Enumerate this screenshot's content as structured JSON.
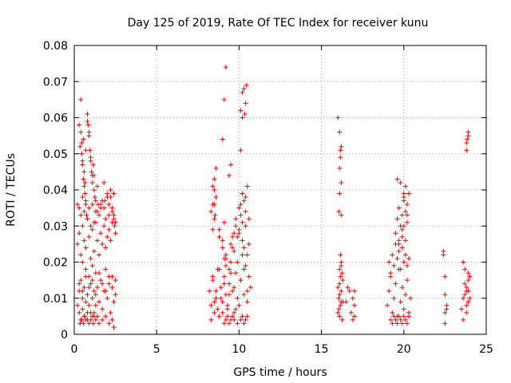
{
  "chart_data": {
    "type": "scatter",
    "title": "Day 125 of 2019, Rate Of TEC Index for receiver kunu",
    "xlabel": "GPS time / hours",
    "ylabel": "ROTI / TECUs",
    "xlim": [
      0,
      25
    ],
    "ylim": [
      0,
      0.08
    ],
    "x_ticks": [
      "0",
      "5",
      "10",
      "15",
      "20",
      "25"
    ],
    "y_ticks": [
      "0",
      "0.01",
      "0.02",
      "0.03",
      "0.04",
      "0.05",
      "0.06",
      "0.07",
      "0.08"
    ],
    "grid": true,
    "marker": "+",
    "color": "#ff0000",
    "series": [
      {
        "x": [
          0.2,
          0.3,
          0.3,
          0.4,
          0.4,
          0.5,
          0.5,
          0.5,
          0.6,
          0.6,
          0.7,
          0.7,
          0.8,
          0.8,
          0.9,
          0.9,
          1.0,
          1.0,
          1.1,
          1.1,
          1.2,
          1.2,
          1.3,
          1.3,
          1.4,
          1.5,
          1.6,
          1.7,
          1.8,
          1.9,
          2.0,
          2.1,
          2.2,
          2.3,
          2.4,
          2.5,
          0.2,
          0.3,
          0.4,
          0.5,
          0.6,
          0.7,
          0.8,
          0.9,
          1.0,
          1.1,
          1.2,
          1.3,
          1.4,
          1.5,
          1.6,
          1.7,
          1.8,
          1.9,
          2.0,
          2.1,
          2.2,
          2.3,
          2.4,
          2.5,
          0.3,
          0.35,
          0.4,
          0.45,
          0.5,
          0.55,
          0.6,
          0.65,
          0.7,
          0.8,
          0.9,
          1.0,
          1.1,
          1.2,
          1.3,
          1.4,
          1.6,
          1.8,
          2.0,
          2.2,
          2.4,
          0.2,
          0.3,
          0.4,
          0.5,
          0.6,
          0.7,
          0.8,
          0.9,
          1.0,
          1.1,
          1.2,
          1.3,
          1.5,
          1.7,
          1.9,
          2.1,
          2.3,
          2.5,
          0.35,
          0.45,
          0.55,
          0.62,
          0.7,
          0.8,
          0.9,
          1.0,
          1.1,
          1.15,
          1.2,
          1.3,
          1.4,
          1.5,
          1.7,
          1.9,
          2.1,
          2.3,
          2.4,
          0.4,
          0.45,
          0.5,
          0.55,
          0.6,
          0.65,
          0.7,
          0.75,
          0.8,
          0.85,
          0.9,
          0.95,
          1.0,
          1.05,
          1.1,
          1.15,
          1.2,
          1.25,
          1.4,
          1.45,
          1.6,
          1.8,
          1.85,
          2.0,
          2.1,
          2.2,
          2.3,
          2.4,
          2.45,
          0.3,
          0.5,
          0.7,
          0.9,
          1.1,
          1.3,
          1.5,
          1.7,
          1.9,
          2.1,
          2.3,
          2.5,
          8.2,
          8.3,
          8.4,
          8.5,
          8.6,
          8.7,
          8.8,
          8.9,
          9.0,
          9.1,
          9.2,
          9.3,
          9.4,
          9.5,
          9.6,
          9.7,
          9.8,
          9.9,
          10.0,
          10.1,
          10.2,
          10.3,
          10.4,
          10.5,
          10.6,
          10.7,
          8.3,
          8.4,
          8.5,
          8.6,
          8.7,
          8.8,
          8.9,
          9.0,
          9.1,
          9.2,
          9.3,
          9.4,
          9.5,
          9.6,
          9.7,
          9.8,
          9.9,
          10.0,
          10.1,
          10.2,
          10.3,
          10.4,
          10.5,
          10.6,
          8.3,
          8.4,
          8.5,
          8.6,
          8.8,
          9.0,
          9.1,
          9.2,
          9.5,
          9.7,
          9.8,
          9.9,
          10.0,
          10.1,
          10.2,
          10.3,
          10.4,
          10.5,
          10.6,
          8.4,
          8.5,
          8.6,
          8.8,
          9.0,
          9.1,
          9.2,
          9.4,
          9.6,
          9.7,
          9.8,
          10.0,
          10.1,
          10.2,
          10.3,
          10.4,
          10.5,
          9.1,
          9.2,
          9.3,
          9.4,
          9.5,
          9.6,
          9.7,
          9.9,
          10.1,
          10.2,
          10.3,
          10.4,
          10.5,
          9.0,
          9.1,
          9.2,
          10.1,
          10.2,
          10.3,
          10.35,
          10.4,
          10.45,
          10.1,
          10.2,
          9.4,
          9.5,
          8.5,
          8.55,
          8.4,
          8.5,
          16.0,
          16.05,
          16.1,
          16.15,
          16.2,
          16.25,
          16.3,
          16.1,
          16.2,
          16.15,
          16.0,
          16.05,
          16.1,
          16.15,
          16.2,
          16.25,
          16.3,
          16.1,
          16.2,
          16.0,
          16.1,
          16.2,
          16.15,
          16.1,
          16.2,
          16.1,
          16.2,
          16.05,
          16.15,
          16.5,
          16.6,
          16.7,
          16.8,
          16.9,
          17.0,
          17.0,
          17.0,
          16.9,
          19.0,
          19.1,
          19.2,
          19.3,
          19.4,
          19.5,
          19.6,
          19.7,
          19.8,
          19.9,
          20.0,
          20.1,
          20.2,
          20.3,
          20.4,
          19.1,
          19.2,
          19.3,
          19.4,
          19.5,
          19.6,
          19.7,
          19.8,
          19.9,
          20.0,
          20.1,
          20.2,
          20.3,
          19.2,
          19.3,
          19.4,
          19.5,
          19.6,
          19.7,
          19.8,
          19.9,
          20.0,
          20.1,
          20.2,
          20.3,
          19.5,
          19.6,
          19.7,
          19.8,
          19.9,
          20.0,
          20.1,
          20.2,
          20.3,
          19.7,
          19.9,
          20.0,
          20.1,
          20.2,
          19.6,
          19.8,
          19.9,
          20.0,
          19.7,
          20.0,
          20.1,
          20.2,
          22.4,
          22.5,
          22.5,
          22.6,
          22.5,
          22.6,
          22.4,
          22.5,
          23.5,
          23.6,
          23.7,
          23.8,
          23.9,
          24.0,
          23.6,
          23.7,
          23.8,
          23.9,
          23.7,
          23.8,
          23.9,
          24.0,
          23.6,
          23.8,
          23.9,
          23.8,
          23.9,
          23.8,
          23.85,
          23.9
        ],
        "y": [
          0.008,
          0.012,
          0.006,
          0.015,
          0.004,
          0.01,
          0.02,
          0.007,
          0.013,
          0.005,
          0.018,
          0.009,
          0.011,
          0.004,
          0.016,
          0.008,
          0.014,
          0.006,
          0.019,
          0.01,
          0.012,
          0.005,
          0.017,
          0.008,
          0.013,
          0.009,
          0.015,
          0.007,
          0.012,
          0.018,
          0.01,
          0.014,
          0.006,
          0.016,
          0.009,
          0.011,
          0.025,
          0.028,
          0.022,
          0.03,
          0.026,
          0.024,
          0.032,
          0.027,
          0.021,
          0.029,
          0.023,
          0.031,
          0.026,
          0.022,
          0.028,
          0.025,
          0.03,
          0.024,
          0.027,
          0.029,
          0.026,
          0.031,
          0.033,
          0.028,
          0.058,
          0.052,
          0.056,
          0.05,
          0.047,
          0.054,
          0.045,
          0.042,
          0.051,
          0.059,
          0.055,
          0.048,
          0.044,
          0.04,
          0.037,
          0.034,
          0.036,
          0.035,
          0.038,
          0.04,
          0.039,
          0.036,
          0.035,
          0.033,
          0.038,
          0.034,
          0.037,
          0.032,
          0.035,
          0.03,
          0.036,
          0.031,
          0.034,
          0.033,
          0.037,
          0.032,
          0.036,
          0.034,
          0.031,
          0.003,
          0.004,
          0.003,
          0.005,
          0.004,
          0.006,
          0.003,
          0.004,
          0.005,
          0.003,
          0.006,
          0.004,
          0.005,
          0.003,
          0.004,
          0.005,
          0.003,
          0.004,
          0.002,
          0.065,
          0.053,
          0.048,
          0.043,
          0.041,
          0.039,
          0.036,
          0.033,
          0.061,
          0.058,
          0.056,
          0.051,
          0.049,
          0.045,
          0.042,
          0.047,
          0.044,
          0.038,
          0.041,
          0.036,
          0.035,
          0.042,
          0.037,
          0.039,
          0.033,
          0.038,
          0.035,
          0.032,
          0.03,
          0.014,
          0.012,
          0.016,
          0.013,
          0.015,
          0.011,
          0.017,
          0.014,
          0.012,
          0.016,
          0.013,
          0.015,
          0.012,
          0.008,
          0.015,
          0.006,
          0.01,
          0.018,
          0.005,
          0.013,
          0.009,
          0.016,
          0.011,
          0.007,
          0.014,
          0.02,
          0.012,
          0.006,
          0.017,
          0.01,
          0.008,
          0.015,
          0.022,
          0.011,
          0.019,
          0.009,
          0.016,
          0.013,
          0.004,
          0.016,
          0.009,
          0.012,
          0.007,
          0.018,
          0.01,
          0.006,
          0.014,
          0.021,
          0.008,
          0.011,
          0.017,
          0.024,
          0.013,
          0.007,
          0.02,
          0.028,
          0.015,
          0.026,
          0.018,
          0.03,
          0.012,
          0.025,
          0.034,
          0.036,
          0.04,
          0.038,
          0.029,
          0.024,
          0.031,
          0.022,
          0.025,
          0.023,
          0.03,
          0.027,
          0.035,
          0.033,
          0.039,
          0.037,
          0.034,
          0.041,
          0.032,
          0.041,
          0.043,
          0.046,
          0.027,
          0.026,
          0.021,
          0.019,
          0.018,
          0.027,
          0.028,
          0.032,
          0.029,
          0.036,
          0.031,
          0.024,
          0.038,
          0.022,
          0.003,
          0.004,
          0.005,
          0.003,
          0.004,
          0.005,
          0.004,
          0.003,
          0.004,
          0.005,
          0.003,
          0.004,
          0.005,
          0.054,
          0.065,
          0.074,
          0.062,
          0.067,
          0.068,
          0.061,
          0.064,
          0.069,
          0.051,
          0.06,
          0.044,
          0.047,
          0.036,
          0.033,
          0.029,
          0.032,
          0.006,
          0.01,
          0.014,
          0.008,
          0.012,
          0.017,
          0.009,
          0.005,
          0.019,
          0.022,
          0.013,
          0.007,
          0.011,
          0.016,
          0.02,
          0.004,
          0.015,
          0.018,
          0.009,
          0.06,
          0.056,
          0.052,
          0.049,
          0.046,
          0.042,
          0.039,
          0.033,
          0.034,
          0.051,
          0.009,
          0.013,
          0.012,
          0.006,
          0.01,
          0.008,
          0.005,
          0.012,
          0.004,
          0.008,
          0.012,
          0.016,
          0.006,
          0.01,
          0.014,
          0.005,
          0.018,
          0.009,
          0.013,
          0.007,
          0.011,
          0.015,
          0.006,
          0.01,
          0.02,
          0.017,
          0.022,
          0.019,
          0.025,
          0.021,
          0.023,
          0.018,
          0.024,
          0.02,
          0.022,
          0.019,
          0.021,
          0.004,
          0.003,
          0.005,
          0.004,
          0.003,
          0.005,
          0.004,
          0.003,
          0.005,
          0.004,
          0.003,
          0.005,
          0.028,
          0.032,
          0.035,
          0.03,
          0.033,
          0.038,
          0.041,
          0.036,
          0.039,
          0.026,
          0.029,
          0.037,
          0.034,
          0.031,
          0.043,
          0.042,
          0.027,
          0.039,
          0.025,
          0.03,
          0.026,
          0.033,
          0.022,
          0.016,
          0.011,
          0.008,
          0.006,
          0.007,
          0.023,
          0.003,
          0.007,
          0.01,
          0.014,
          0.008,
          0.012,
          0.016,
          0.004,
          0.011,
          0.013,
          0.009,
          0.018,
          0.006,
          0.015,
          0.01,
          0.02,
          0.012,
          0.017,
          0.053,
          0.055,
          0.051,
          0.054,
          0.056
        ]
      }
    ]
  }
}
